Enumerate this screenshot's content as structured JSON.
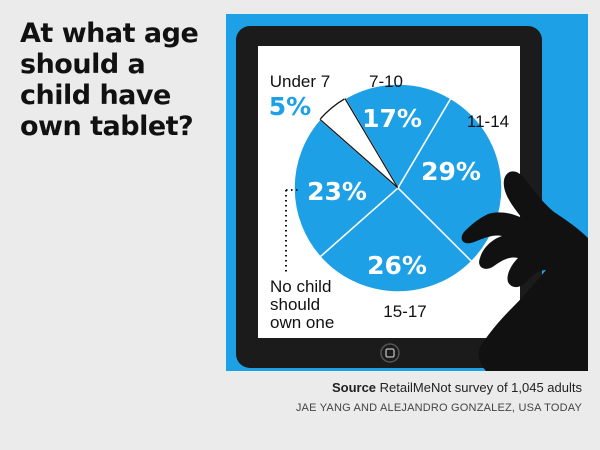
{
  "title": "At what age should a child have own tablet?",
  "chart_data": {
    "type": "pie",
    "title": "At what age should a child have own tablet?",
    "slices": [
      {
        "label": "Under 7",
        "value": 5,
        "display": "5%"
      },
      {
        "label": "7-10",
        "value": 17,
        "display": "17%"
      },
      {
        "label": "11-14",
        "value": 29,
        "display": "29%"
      },
      {
        "label": "15-17",
        "value": 26,
        "display": "26%"
      },
      {
        "label": "No child should own one",
        "value": 23,
        "display": "23%"
      }
    ]
  },
  "source": {
    "label": "Source",
    "text": "RetailMeNot survey of 1,045 adults"
  },
  "credit": "JAE YANG AND ALEJANDRO GONZALEZ, USA TODAY",
  "colors": {
    "accent": "#1ea0e6",
    "device": "#1b1b1b",
    "screen": "#ffffff",
    "background": "#ebebeb"
  },
  "icons": {
    "hand": "hand-icon",
    "home_button": "home-button-icon"
  }
}
